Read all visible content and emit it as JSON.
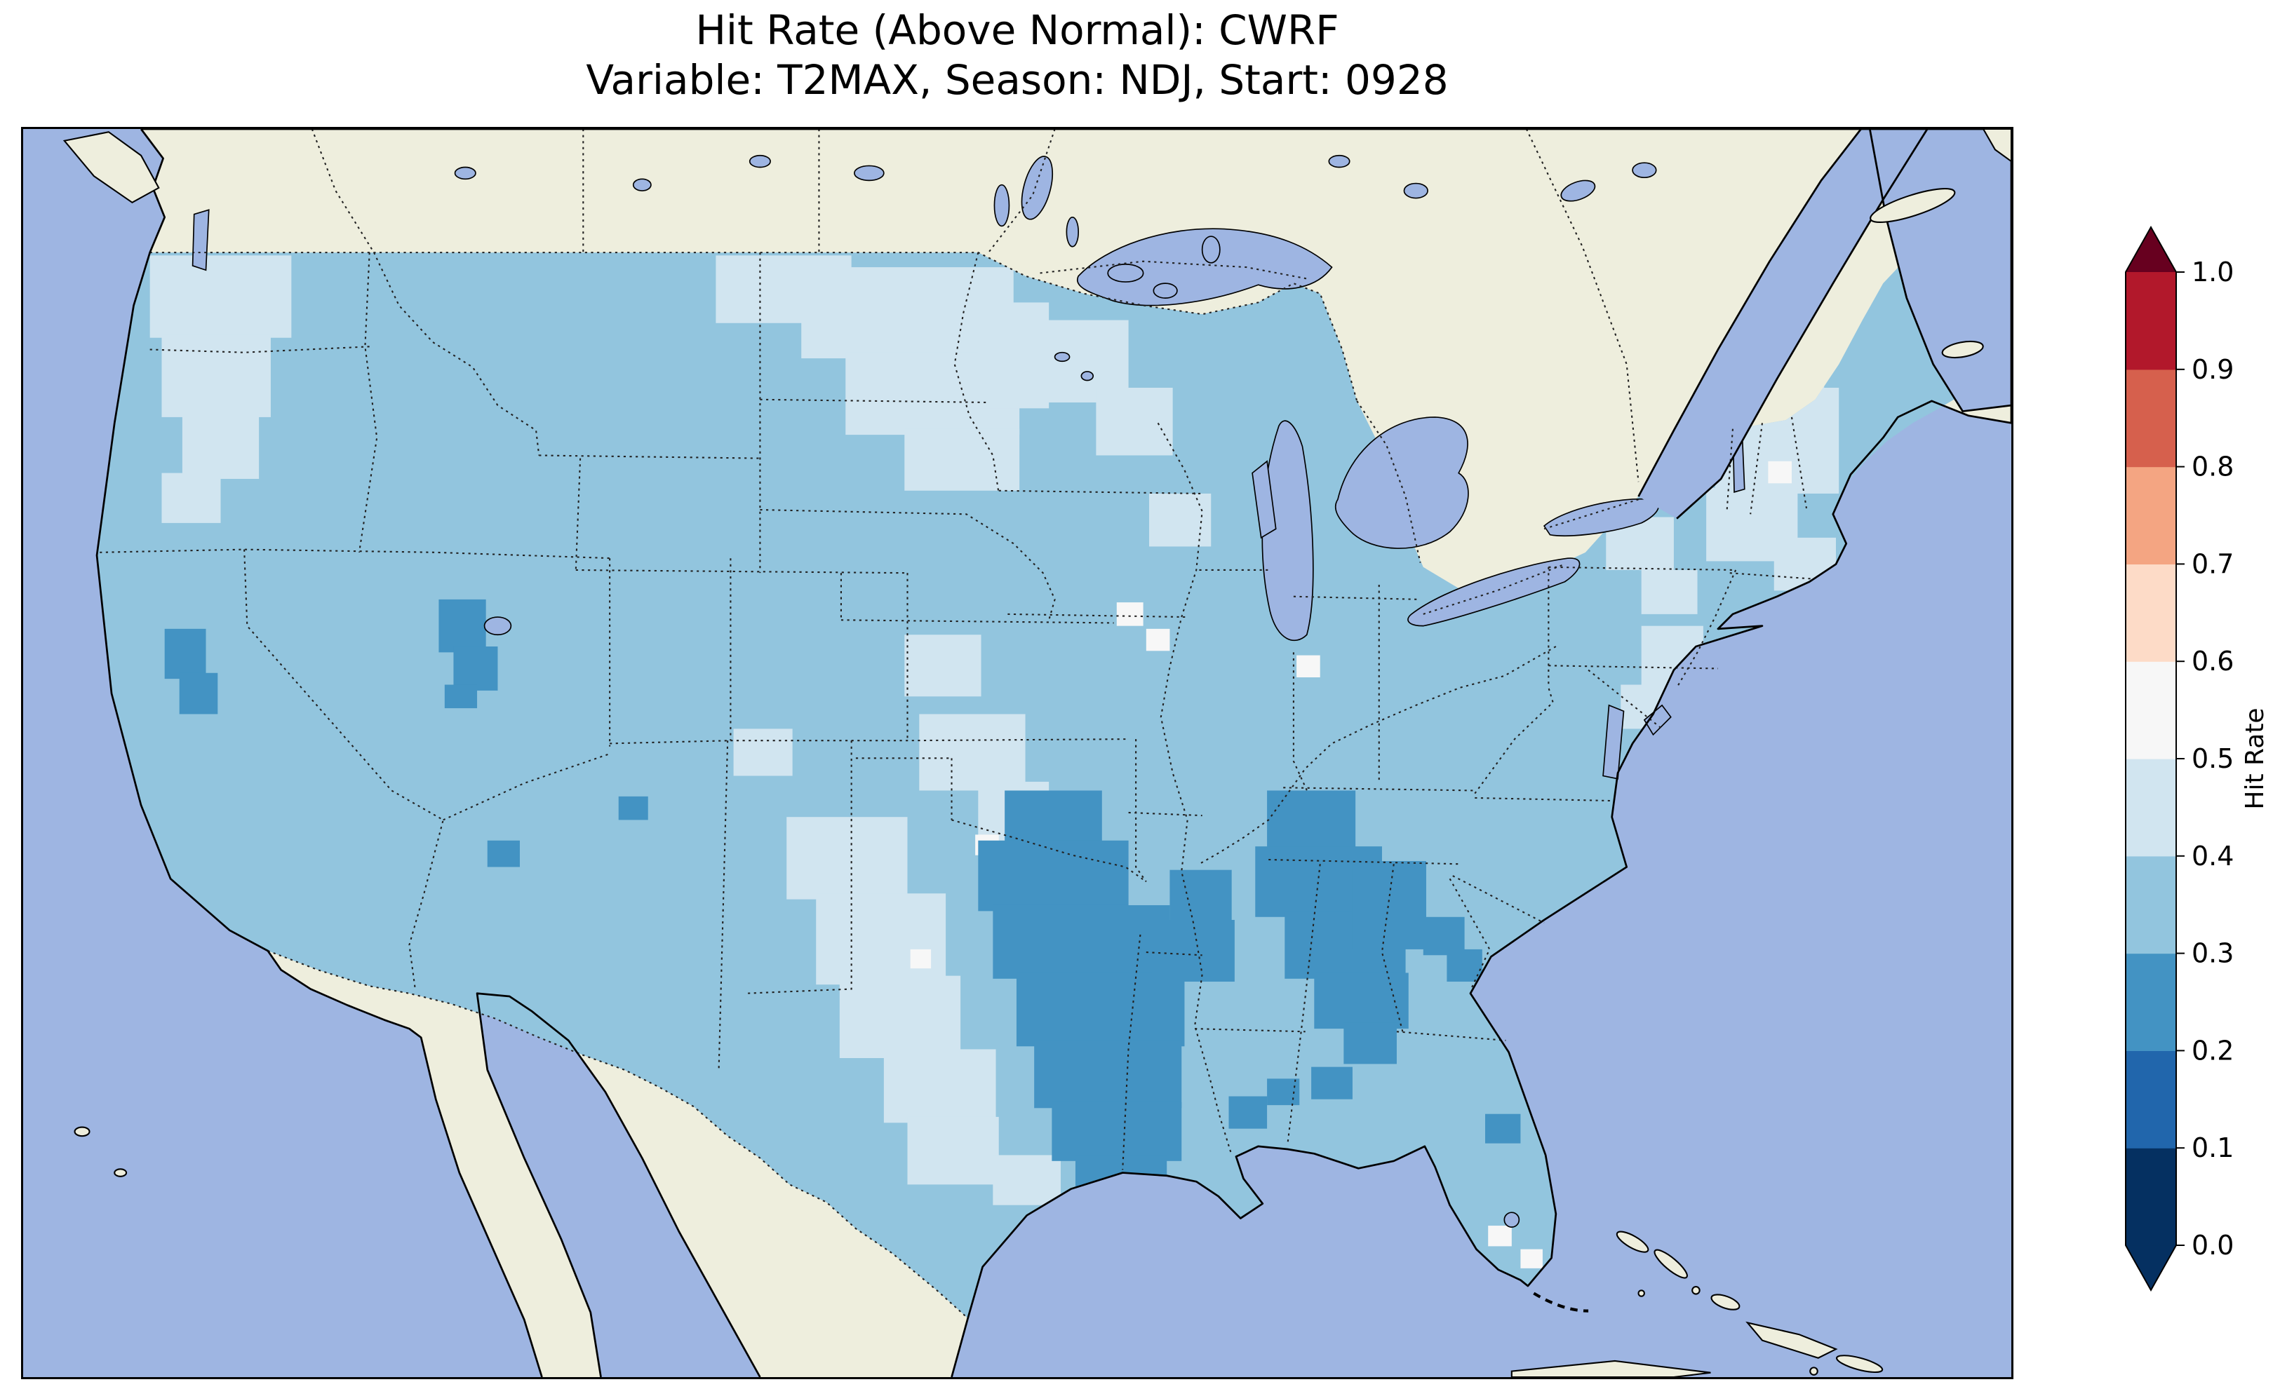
{
  "title": {
    "line1": "Hit Rate (Above Normal): CWRF",
    "line2": "Variable: T2MAX, Season: NDJ, Start: 0928"
  },
  "map": {
    "colors": {
      "ocean": "#9eb5e2",
      "land": "#eeeedd",
      "coastline": "#000000"
    }
  },
  "chart_data": {
    "type": "heatmap",
    "title": "Hit Rate (Above Normal): CWRF",
    "subtitle": "Variable: T2MAX, Season: NDJ, Start: 0928",
    "metric": "Hit Rate (Above Normal)",
    "model": "CWRF",
    "variable": "T2MAX",
    "season": "NDJ",
    "start_date": "0928",
    "region": "Contiguous United States",
    "projection_note": "US map with gridded hit-rate field, surrounding land beige, ocean light periwinkle",
    "colorbar": {
      "label": "Hit Rate",
      "orientation": "vertical",
      "extend": "both",
      "range": [
        0.0,
        1.0
      ],
      "ticks": [
        "0.0",
        "0.1",
        "0.2",
        "0.3",
        "0.4",
        "0.5",
        "0.6",
        "0.7",
        "0.8",
        "0.9",
        "1.0"
      ],
      "bin_colors": [
        "#053061",
        "#2166ac",
        "#4393c3",
        "#92c5de",
        "#d1e5f0",
        "#f7f7f7",
        "#fddbc7",
        "#f4a582",
        "#d6604d",
        "#b2182b"
      ],
      "under_color": "#053061",
      "over_color": "#67001f"
    },
    "background_value_range": [
      0.3,
      0.4
    ],
    "values_summary": [
      {
        "area": "Most of the contiguous US",
        "hit_rate": "0.3-0.4"
      },
      {
        "area": "Western Washington / Pacific Northwest coast",
        "hit_rate": "0.4-0.5"
      },
      {
        "area": "Northern Montana, North Dakota, northern Minnesota",
        "hit_rate": "0.4-0.5"
      },
      {
        "area": "New England (VT / NH / ME) and scattered Mid-Atlantic cells",
        "hit_rate": "0.4-0.5"
      },
      {
        "area": "Western and southern Texas, eastern New Mexico, central Oklahoma",
        "hit_rate": "0.4-0.5"
      },
      {
        "area": "Scattered single cells (Wisconsin, central Michigan, Oklahoma, south Florida)",
        "hit_rate": "0.5-0.6"
      },
      {
        "area": "East Texas - Arkansas - Louisiana - Mississippi",
        "hit_rate": "0.2-0.3"
      },
      {
        "area": "Northern Alabama - northwest Georgia - southern Tennessee, bits of South Carolina",
        "hit_rate": "0.2-0.3"
      },
      {
        "area": "Northeast Nevada / northwest Utah patch",
        "hit_rate": "0.2-0.3"
      },
      {
        "area": "Northern California interior patch, small cells in Arizona, Colorado, Florida panhandle",
        "hit_rate": "0.2-0.3"
      }
    ]
  }
}
